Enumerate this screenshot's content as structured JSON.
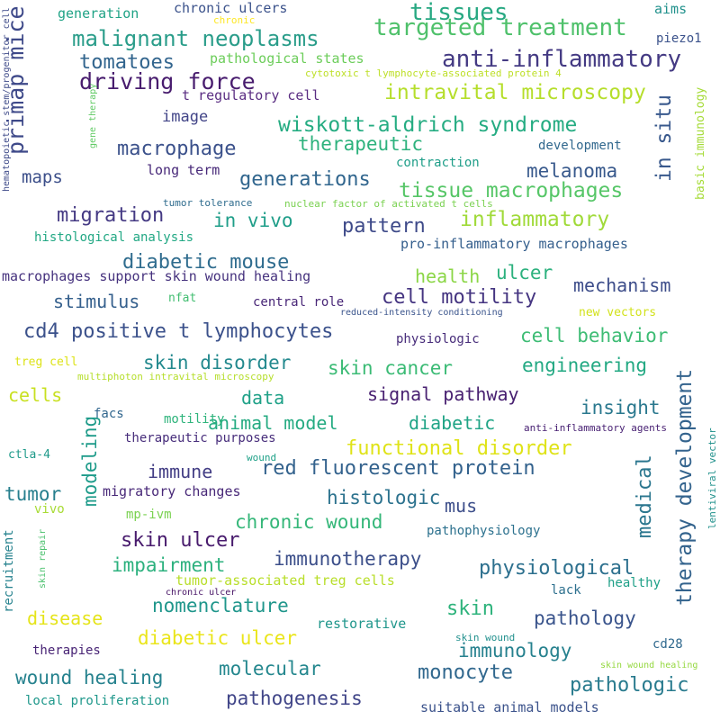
{
  "words": [
    {
      "text": "malignant neoplasms",
      "color": "#2a9d8a"
    },
    {
      "text": "targeted treatment",
      "color": "#4fc16b"
    },
    {
      "text": "tissues",
      "color": "#27a882"
    },
    {
      "text": "tomatoes",
      "color": "#32658e"
    },
    {
      "text": "driving force",
      "color": "#481c6e"
    },
    {
      "text": "anti-inflammatory",
      "color": "#443a83"
    },
    {
      "text": "intravital microscopy",
      "color": "#b5de2b"
    },
    {
      "text": "wiskott-aldrich syndrome",
      "color": "#25ac82"
    },
    {
      "text": "macrophage",
      "color": "#3b518b"
    },
    {
      "text": "therapeutic",
      "color": "#2db27d"
    },
    {
      "text": "generations",
      "color": "#31668e"
    },
    {
      "text": "melanoma",
      "color": "#38598c"
    },
    {
      "text": "tissue macrophages",
      "color": "#56c667"
    },
    {
      "text": "migration",
      "color": "#443983"
    },
    {
      "text": "in vivo",
      "color": "#1f9e89"
    },
    {
      "text": "pattern",
      "color": "#3e4a89"
    },
    {
      "text": "inflammatory",
      "color": "#a0da39"
    },
    {
      "text": "diabetic mouse",
      "color": "#2f6c8e"
    },
    {
      "text": "health",
      "color": "#8bd646"
    },
    {
      "text": "ulcer",
      "color": "#2cb17e"
    },
    {
      "text": "mechanism",
      "color": "#3d4d8a"
    },
    {
      "text": "stimulus",
      "color": "#35608d"
    },
    {
      "text": "cell motility",
      "color": "#453581"
    },
    {
      "text": "cd4 positive t lymphocytes",
      "color": "#3b518b"
    },
    {
      "text": "cell behavior",
      "color": "#3dbc74"
    },
    {
      "text": "skin disorder",
      "color": "#23898e"
    },
    {
      "text": "skin cancer",
      "color": "#3bbb75"
    },
    {
      "text": "engineering",
      "color": "#23a983"
    },
    {
      "text": "signal pathway",
      "color": "#482071"
    },
    {
      "text": "cells",
      "color": "#c8e020"
    },
    {
      "text": "data",
      "color": "#1fa188"
    },
    {
      "text": "insight",
      "color": "#2a788e"
    },
    {
      "text": "animal model",
      "color": "#25ab82"
    },
    {
      "text": "diabetic",
      "color": "#20a486"
    },
    {
      "text": "functional disorder",
      "color": "#dfe318"
    },
    {
      "text": "immune",
      "color": "#433e85"
    },
    {
      "text": "red fluorescent protein",
      "color": "#33628d"
    },
    {
      "text": "tumor",
      "color": "#277f8e"
    },
    {
      "text": "histologic",
      "color": "#2c728e"
    },
    {
      "text": "mus",
      "color": "#3d4e8a"
    },
    {
      "text": "chronic wound",
      "color": "#35b779"
    },
    {
      "text": "skin ulcer",
      "color": "#481b6d"
    },
    {
      "text": "immunotherapy",
      "color": "#3c4f8a"
    },
    {
      "text": "impairment",
      "color": "#2cb17e"
    },
    {
      "text": "physiological",
      "color": "#2d708e"
    },
    {
      "text": "nomenclature",
      "color": "#1f968b"
    },
    {
      "text": "skin",
      "color": "#2eb37c"
    },
    {
      "text": "disease",
      "color": "#e5e419"
    },
    {
      "text": "pathology",
      "color": "#3a548c"
    },
    {
      "text": "diabetic ulcer",
      "color": "#eae51a"
    },
    {
      "text": "immunology",
      "color": "#26818e"
    },
    {
      "text": "molecular",
      "color": "#24878e"
    },
    {
      "text": "wound healing",
      "color": "#26828e"
    },
    {
      "text": "monocyte",
      "color": "#31688e"
    },
    {
      "text": "pathologic",
      "color": "#297b8e"
    },
    {
      "text": "pathogenesis",
      "color": "#404588"
    },
    {
      "text": "primap mice",
      "color": "#3e4989"
    },
    {
      "text": "therapy development",
      "color": "#33638d"
    },
    {
      "text": "in situ",
      "color": "#38588c"
    },
    {
      "text": "modeling",
      "color": "#1e9b8a"
    },
    {
      "text": "medical",
      "color": "#2a768e"
    },
    {
      "text": "maps",
      "color": "#3c4f8a"
    },
    {
      "text": "image",
      "color": "#414487"
    },
    {
      "text": "generation",
      "color": "#20a386"
    },
    {
      "text": "chronic ulcers",
      "color": "#3b528b"
    },
    {
      "text": "aims",
      "color": "#21918c"
    },
    {
      "text": "piezo1",
      "color": "#3b528b"
    },
    {
      "text": "pathological states",
      "color": "#6ccd5a"
    },
    {
      "text": "t regulatory cell",
      "color": "#5a2d82"
    },
    {
      "text": "long term",
      "color": "#482979"
    },
    {
      "text": "development",
      "color": "#31688e"
    },
    {
      "text": "contraction",
      "color": "#1f9e89"
    },
    {
      "text": "histological analysis",
      "color": "#22a884"
    },
    {
      "text": "pro-inflammatory macrophages",
      "color": "#355f8d"
    },
    {
      "text": "macrophages support skin wound healing",
      "color": "#46327e"
    },
    {
      "text": "central role",
      "color": "#482677"
    },
    {
      "text": "physiologic",
      "color": "#472c7a"
    },
    {
      "text": "new vectors",
      "color": "#d2e21b"
    },
    {
      "text": "treg cell",
      "color": "#dde318"
    },
    {
      "text": "motility",
      "color": "#2fb47c"
    },
    {
      "text": "facs",
      "color": "#31668e"
    },
    {
      "text": "therapeutic purposes",
      "color": "#472d7b"
    },
    {
      "text": "ctla-4",
      "color": "#1f9a8a"
    },
    {
      "text": "migratory changes",
      "color": "#482878"
    },
    {
      "text": "vivo",
      "color": "#a8db34"
    },
    {
      "text": "mp-ivm",
      "color": "#7ad151"
    },
    {
      "text": "pathophysiology",
      "color": "#2c718e"
    },
    {
      "text": "recruitment",
      "color": "#26828e"
    },
    {
      "text": "tumor-associated treg cells",
      "color": "#b8de29"
    },
    {
      "text": "lack",
      "color": "#2d708e"
    },
    {
      "text": "healthy",
      "color": "#1fa088"
    },
    {
      "text": "restorative",
      "color": "#1f968b"
    },
    {
      "text": "therapies",
      "color": "#482475"
    },
    {
      "text": "cd28",
      "color": "#30698e"
    },
    {
      "text": "local proliferation",
      "color": "#1f988b"
    },
    {
      "text": "suitable animal models",
      "color": "#3b528b"
    },
    {
      "text": "basic immunology",
      "color": "#a5db36"
    },
    {
      "text": "lentiviral vector",
      "color": "#21918c"
    },
    {
      "text": "anti-inflammatory agents",
      "color": "#482173"
    },
    {
      "text": "chronic",
      "color": "#fde725"
    },
    {
      "text": "cytotoxic t lymphocyte-associated protein 4",
      "color": "#bddf26"
    },
    {
      "text": "hematopoietic stem/progenitor cell",
      "color": "#3e4a89"
    },
    {
      "text": "gene therapy",
      "color": "#5ec962"
    },
    {
      "text": "tumor tolerance",
      "color": "#2f6c8e"
    },
    {
      "text": "nuclear factor of activated t cells",
      "color": "#7ad151"
    },
    {
      "text": "nfat",
      "color": "#42be71"
    },
    {
      "text": "reduced-intensity conditioning",
      "color": "#3a548c"
    },
    {
      "text": "multiphoton intravital microscopy",
      "color": "#b5de2b"
    },
    {
      "text": "wound",
      "color": "#1fa188"
    },
    {
      "text": "skin repair",
      "color": "#4ac16d"
    },
    {
      "text": "chronic ulcer",
      "color": "#471365"
    },
    {
      "text": "skin wound",
      "color": "#21908d"
    },
    {
      "text": "skin wound healing",
      "color": "#95d840"
    }
  ]
}
